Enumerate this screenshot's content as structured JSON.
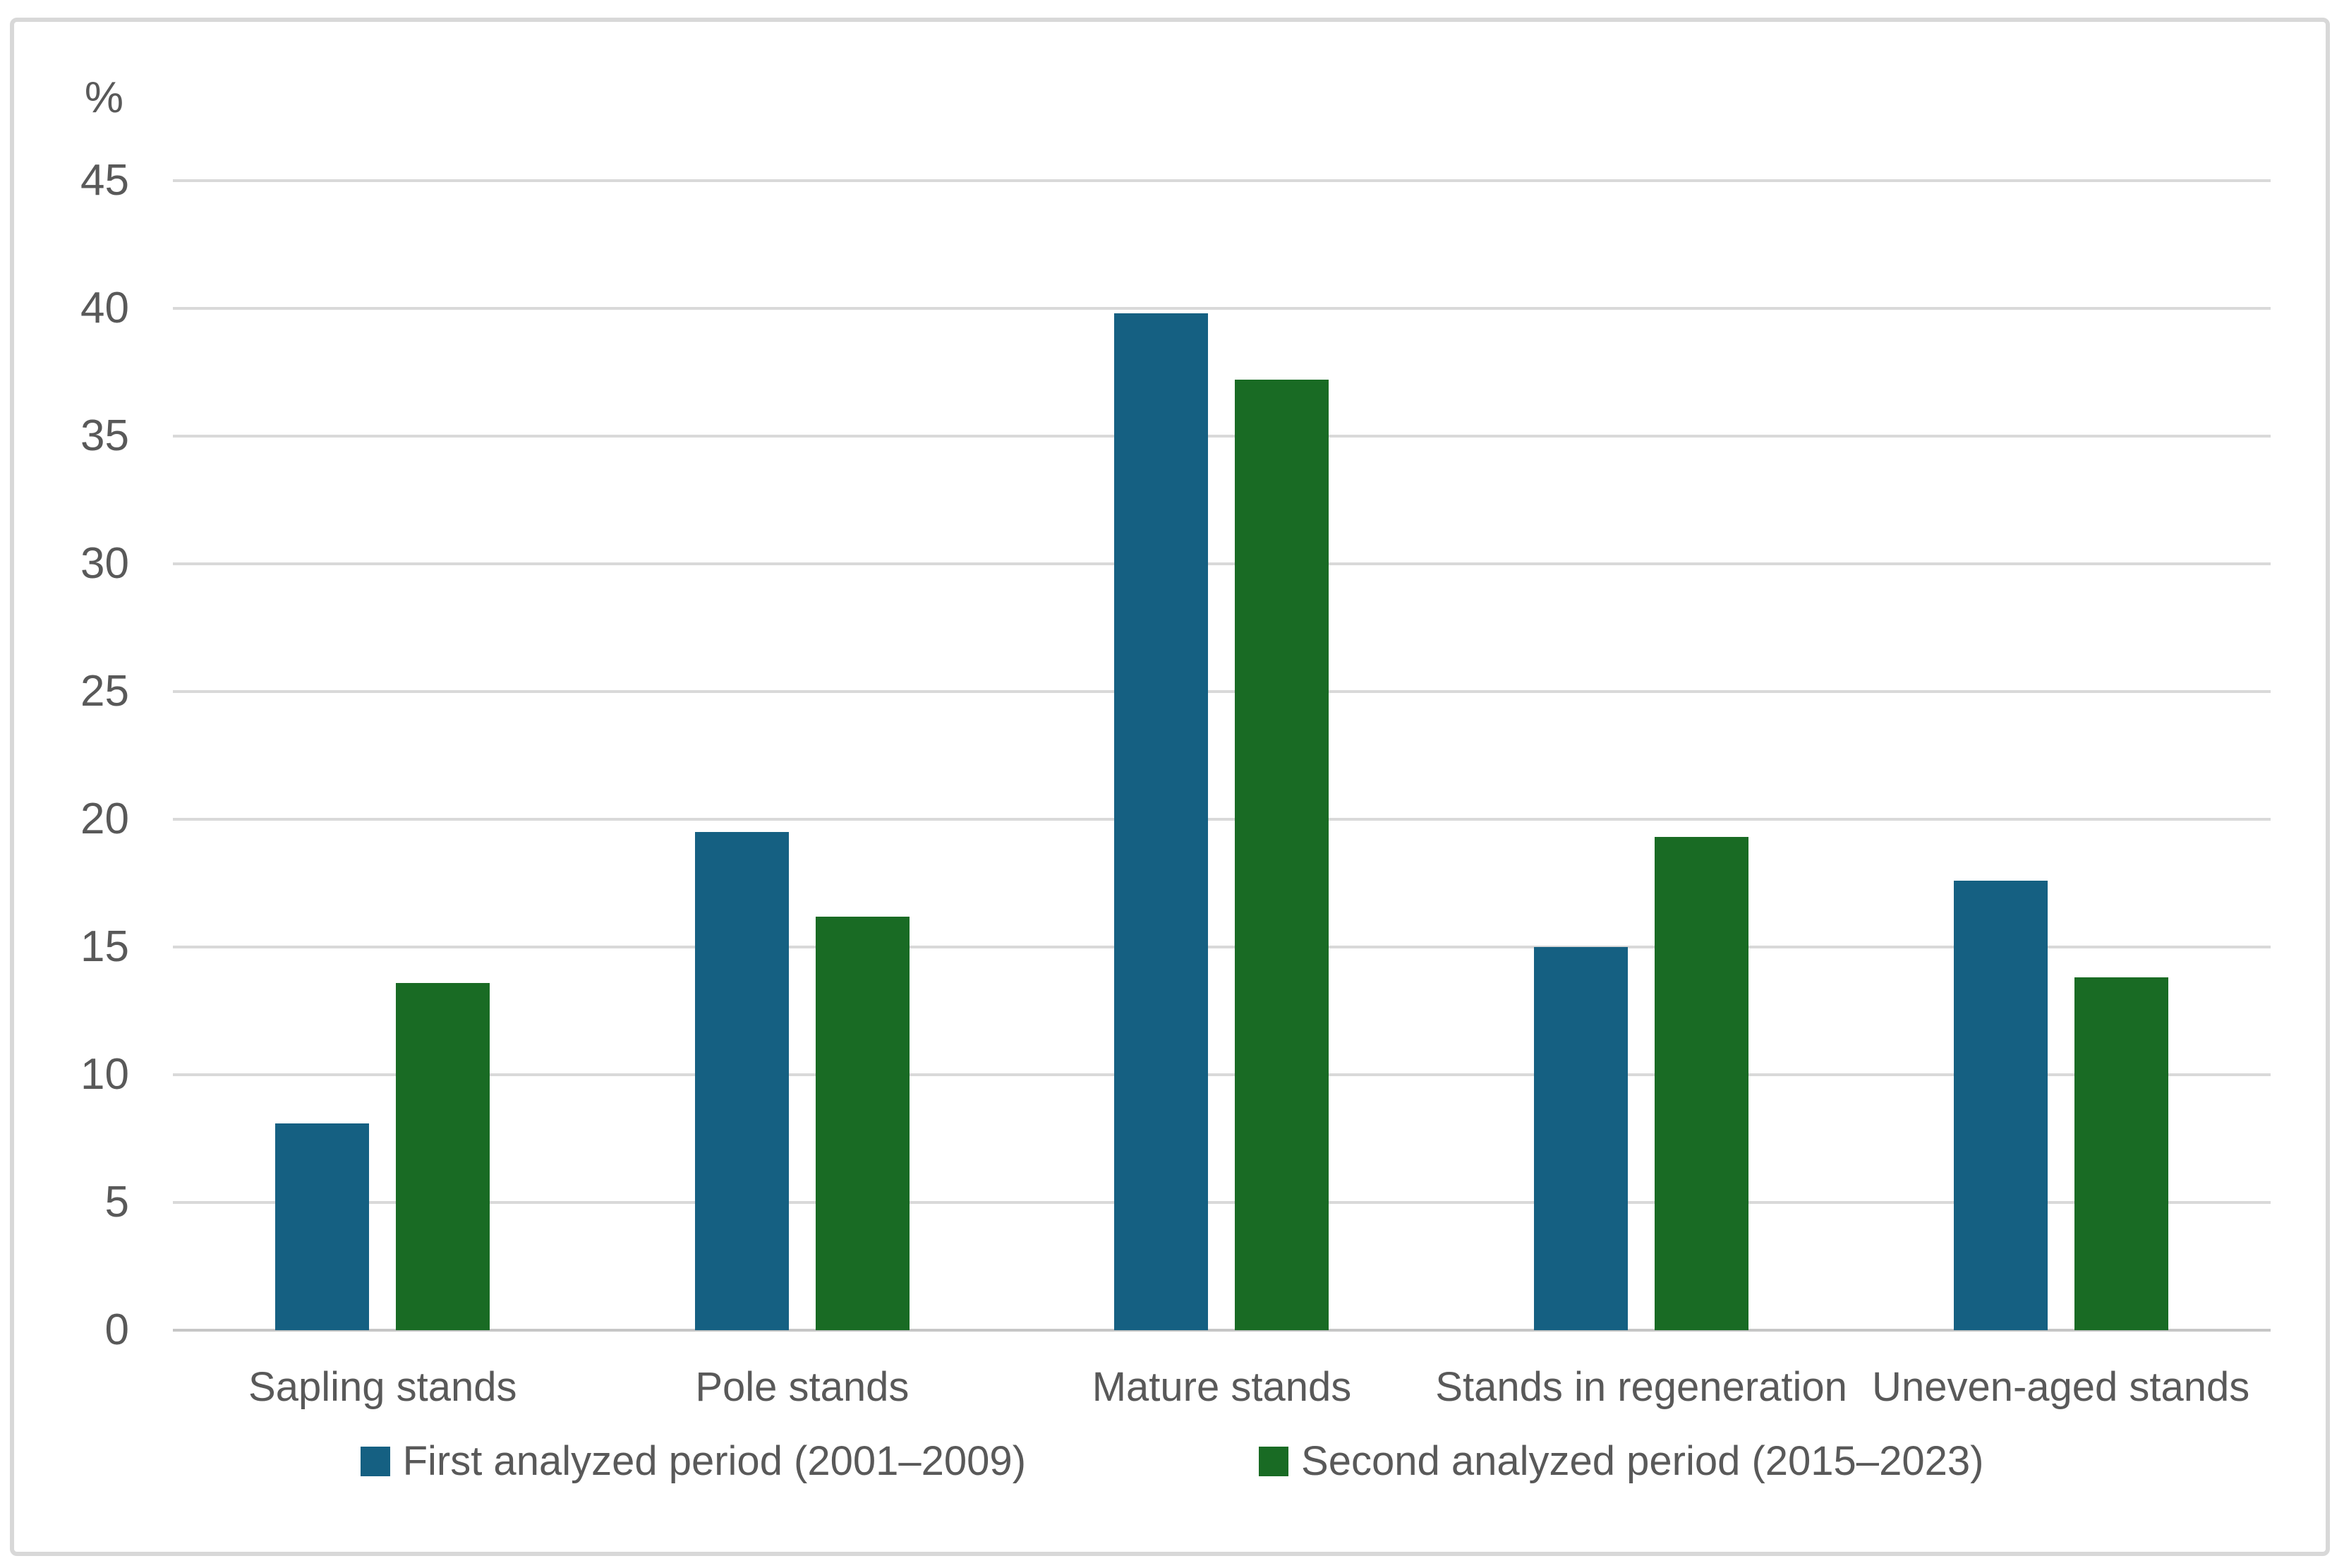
{
  "chart": {
    "unit_label": "%",
    "colors": {
      "series_first_period": "#156082",
      "series_second_period": "#196B24",
      "gridline": "#D9D9D9",
      "axis_baseline": "#C6C6C6",
      "text": "#595959",
      "frame_border": "#D8D8D8",
      "background": "#FFFFFF"
    }
  },
  "chart_data": {
    "type": "bar",
    "title": "",
    "xlabel": "",
    "ylabel": "%",
    "ylim": [
      0,
      45
    ],
    "ytick_step": 5,
    "grid": true,
    "legend_position": "bottom",
    "categories": [
      "Sapling stands",
      "Pole stands",
      "Mature stands",
      "Stands in regeneration",
      "Uneven-aged stands"
    ],
    "series": [
      {
        "name": "First analyzed period (2001–2009)",
        "color": "#156082",
        "values": [
          8.1,
          19.5,
          39.8,
          15.0,
          17.6
        ]
      },
      {
        "name": "Second analyzed period (2015–2023)",
        "color": "#196B24",
        "values": [
          13.6,
          16.2,
          37.2,
          19.3,
          13.8
        ]
      }
    ]
  }
}
